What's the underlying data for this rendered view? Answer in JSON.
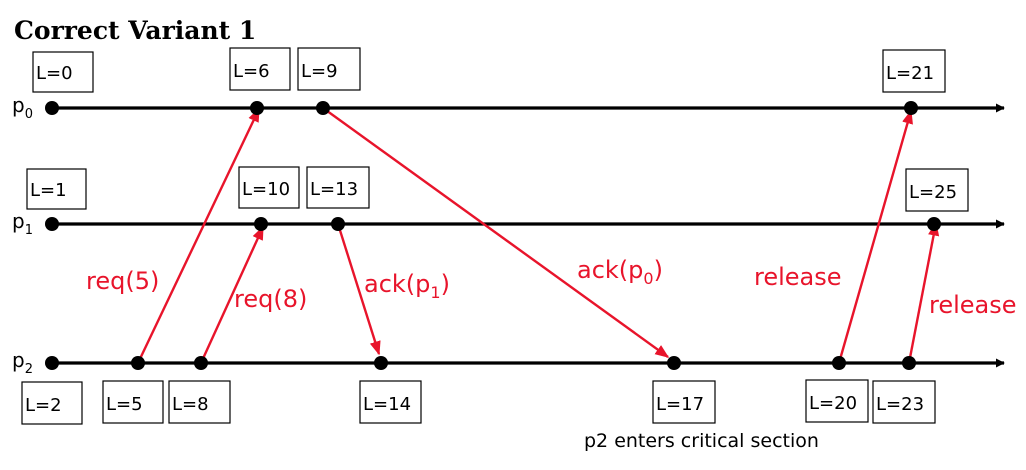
{
  "title": "Correct Variant 1",
  "colors": {
    "timeline": "#000000",
    "message": "#e8142b",
    "box_border": "#000000"
  },
  "processes": [
    {
      "name": "p",
      "sub": "0"
    },
    {
      "name": "p",
      "sub": "1"
    },
    {
      "name": "p",
      "sub": "2"
    }
  ],
  "clocks": {
    "p0": [
      "L=0",
      "L=6",
      "L=9",
      "L=21"
    ],
    "p1": [
      "L=1",
      "L=10",
      "L=13",
      "L=25"
    ],
    "p2": [
      "L=2",
      "L=5",
      "L=8",
      "L=14",
      "L=17",
      "L=20",
      "L=23"
    ]
  },
  "messages": {
    "req5": {
      "text": "req(5)"
    },
    "req8": {
      "text": "req(8)"
    },
    "ackp1": {
      "text": "ack(p",
      "sub": "1",
      "close": ")"
    },
    "ackp0": {
      "text": "ack(p",
      "sub": "0",
      "close": ")"
    },
    "release1": {
      "text": "release"
    },
    "release2": {
      "text": "release"
    }
  },
  "note": "p2 enters critical section"
}
